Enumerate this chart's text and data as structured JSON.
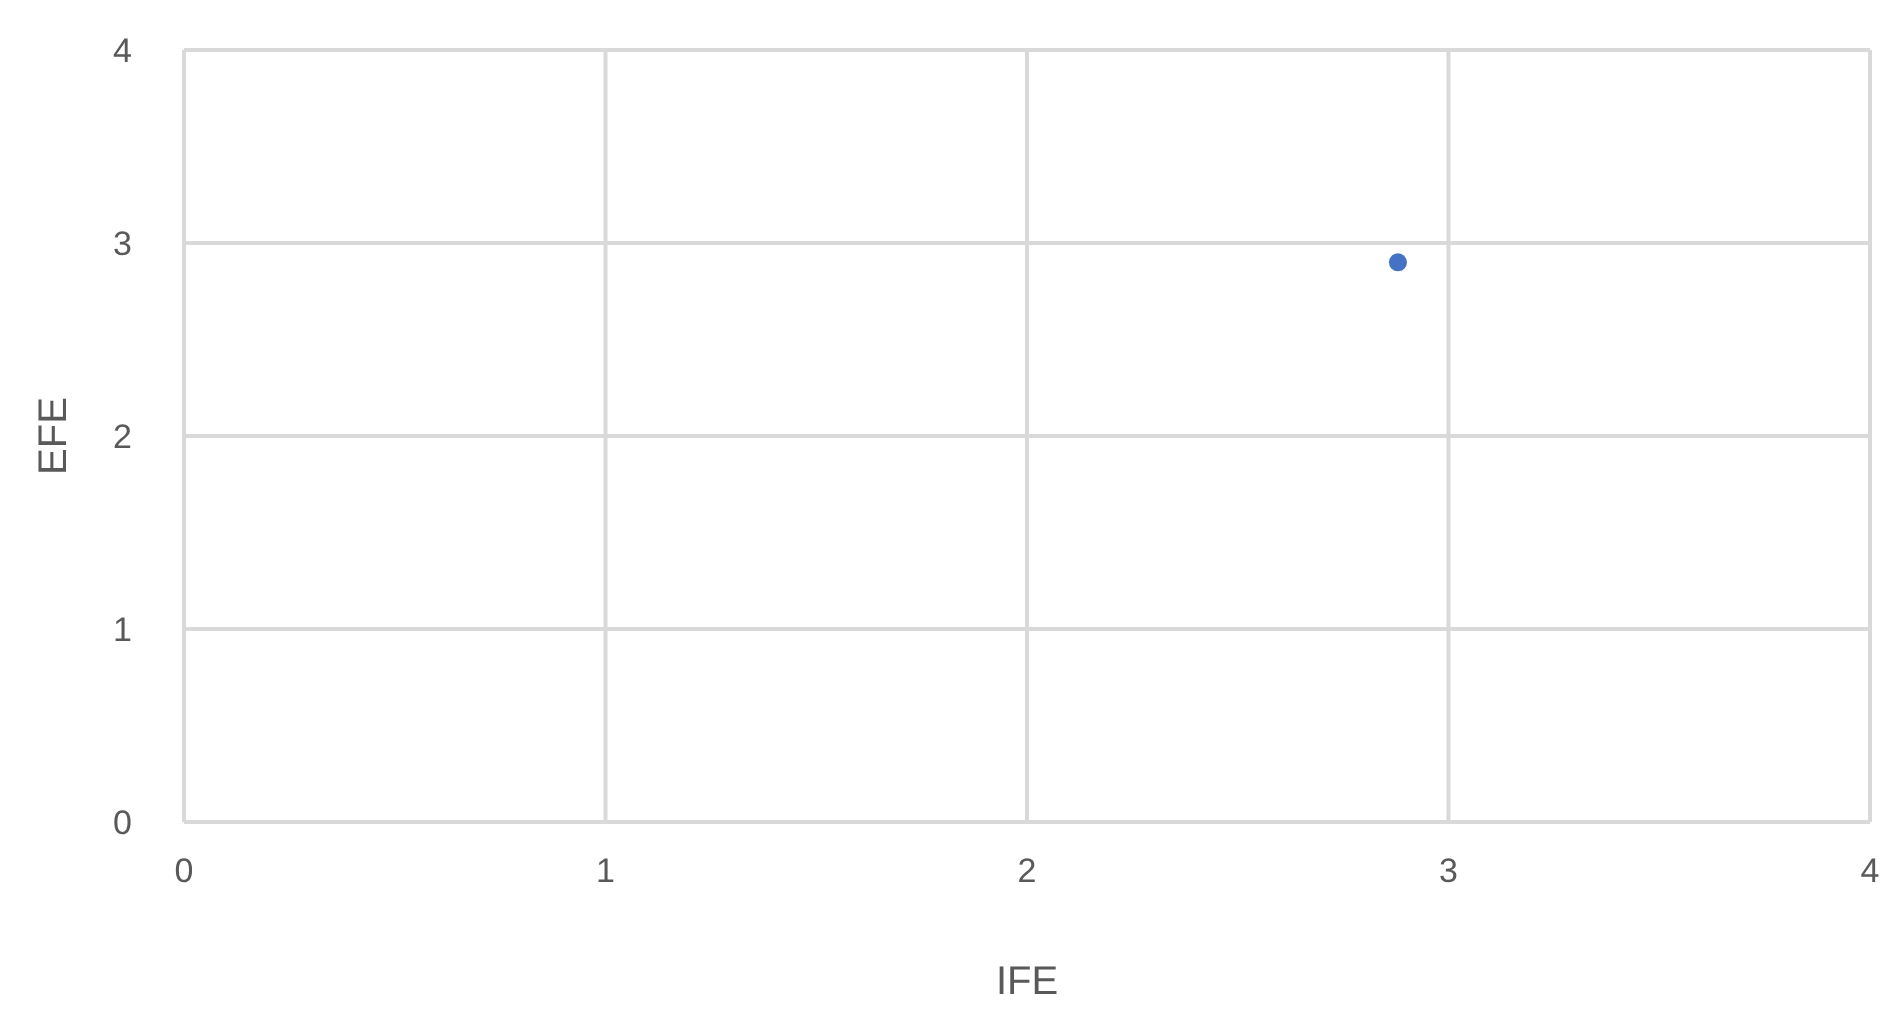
{
  "chart_data": {
    "type": "scatter",
    "xlabel": "IFE",
    "ylabel": "EFE",
    "x": [
      2.88
    ],
    "values": [
      2.9
    ],
    "color": "#4472c4",
    "xlim": [
      0,
      4
    ],
    "xticks": [
      0,
      1,
      2,
      3,
      4
    ],
    "ylim": [
      0,
      4
    ],
    "yticks": [
      0,
      1,
      2,
      3,
      4
    ],
    "grid": true,
    "marker": "circle",
    "legend": false
  }
}
